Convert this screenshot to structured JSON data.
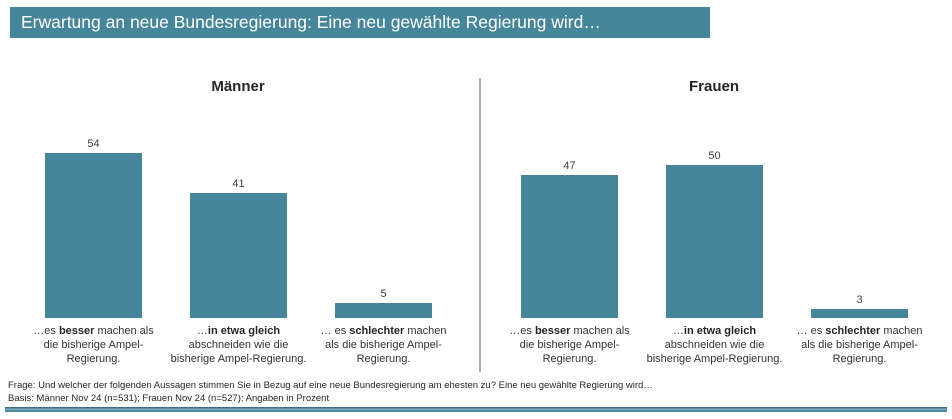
{
  "banner": {
    "title": "Erwartung an neue Bundesregierung: Eine neu gewählte Regierung wird…"
  },
  "chart_data": {
    "type": "bar",
    "title": "Erwartung an neue Bundesregierung: Eine neu gewählte Regierung wird…",
    "unit": "Prozent",
    "categories": [
      "…es besser machen als die bisherige Ampel-Regierung.",
      "…in etwa gleich abschneiden wie die bisherige Ampel-Regierung.",
      "… es schlechter machen als die bisherige Ampel-Regierung."
    ],
    "series": [
      {
        "name": "Männer",
        "values": [
          54,
          41,
          5
        ]
      },
      {
        "name": "Frauen",
        "values": [
          47,
          50,
          3
        ]
      }
    ],
    "ylim": [
      0,
      60
    ],
    "grid": false,
    "legend": "none",
    "value_labels": true,
    "bar_color": "#45869B"
  },
  "panels": [
    {
      "title": "Männer",
      "bars": [
        {
          "value": 54,
          "label_pre": "…es ",
          "label_bold": "besser",
          "label_post": " machen als die bisherige Ampel-Regierung."
        },
        {
          "value": 41,
          "label_pre": "…",
          "label_bold": "in etwa gleich",
          "label_post": " abschneiden wie die bisherige Ampel-Regierung."
        },
        {
          "value": 5,
          "label_pre": "… es ",
          "label_bold": "schlechter",
          "label_post": " machen als die bisherige Ampel-Regierung."
        }
      ]
    },
    {
      "title": "Frauen",
      "bars": [
        {
          "value": 47,
          "label_pre": "…es ",
          "label_bold": "besser",
          "label_post": " machen als die bisherige Ampel-Regierung."
        },
        {
          "value": 50,
          "label_pre": "…",
          "label_bold": "in etwa gleich",
          "label_post": " abschneiden wie die bisherige Ampel-Regierung."
        },
        {
          "value": 3,
          "label_pre": "… es ",
          "label_bold": "schlechter",
          "label_post": " machen als die bisherige Ampel-Regierung."
        }
      ]
    }
  ],
  "footer": {
    "frage": "Frage: Und welcher der folgenden Aussagen stimmen Sie in Bezug auf eine neue Bundesregierung am ehesten zu? Eine neu gewählte Regierung wird…",
    "basis": "Basis: Männer Nov 24 (n=531); Frauen Nov 24 (n=527); Angaben in Prozent"
  },
  "colors": {
    "teal": "#45869B",
    "divider": "#ACACAC",
    "accent_dark": "#3C6F84"
  }
}
